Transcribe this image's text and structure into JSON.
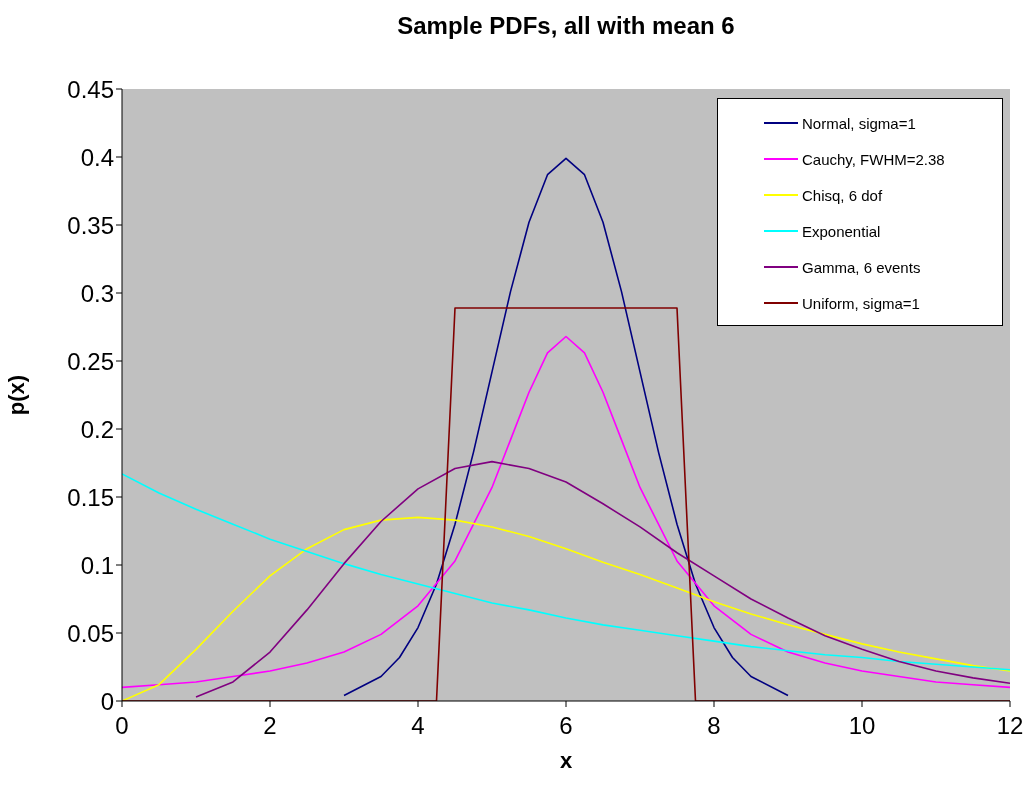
{
  "chart_data": {
    "type": "line",
    "title": "Sample PDFs, all with mean 6",
    "xlabel": "x",
    "ylabel": "p(x)",
    "xlim": [
      0,
      12
    ],
    "xticks": [
      0,
      2,
      4,
      6,
      8,
      10,
      12
    ],
    "ylim": [
      0,
      0.45
    ],
    "yticks": [
      0,
      0.05,
      0.1,
      0.15,
      0.2,
      0.25,
      0.3,
      0.35,
      0.4,
      0.45
    ],
    "grid": false,
    "legend": "top right",
    "marker": "none",
    "line_style": "solid",
    "series": [
      {
        "name": "Normal, sigma=1",
        "color": "#000080",
        "x": [
          3,
          3.5,
          3.75,
          4,
          4.25,
          4.5,
          4.75,
          5,
          5.25,
          5.5,
          5.75,
          6,
          6.25,
          6.5,
          6.75,
          7,
          7.25,
          7.5,
          7.75,
          8,
          8.25,
          8.5,
          9
        ],
        "values": [
          0.004,
          0.018,
          0.032,
          0.054,
          0.086,
          0.13,
          0.183,
          0.242,
          0.301,
          0.352,
          0.387,
          0.399,
          0.387,
          0.352,
          0.301,
          0.242,
          0.183,
          0.13,
          0.086,
          0.054,
          0.032,
          0.018,
          0.004
        ]
      },
      {
        "name": "Cauchy, FWHM=2.38",
        "color": "#ff00ff",
        "x": [
          0,
          0.5,
          1,
          1.5,
          2,
          2.5,
          3,
          3.5,
          4,
          4.5,
          5,
          5.25,
          5.5,
          5.75,
          6,
          6.25,
          6.5,
          6.75,
          7,
          7.5,
          8,
          8.5,
          9,
          9.5,
          10,
          10.5,
          11,
          11.5,
          12
        ],
        "values": [
          0.01,
          0.012,
          0.014,
          0.018,
          0.022,
          0.028,
          0.036,
          0.049,
          0.07,
          0.103,
          0.157,
          0.192,
          0.227,
          0.256,
          0.268,
          0.256,
          0.227,
          0.192,
          0.157,
          0.103,
          0.07,
          0.049,
          0.036,
          0.028,
          0.022,
          0.018,
          0.014,
          0.012,
          0.01
        ]
      },
      {
        "name": "Chisq, 6 dof",
        "color": "#ffff00",
        "x": [
          0,
          0.5,
          1,
          1.5,
          2,
          2.5,
          3,
          3.5,
          4,
          4.5,
          5,
          5.5,
          6,
          6.5,
          7,
          7.5,
          8,
          8.5,
          9,
          9.5,
          10,
          10.5,
          11,
          11.5,
          12
        ],
        "values": [
          0,
          0.012,
          0.038,
          0.066,
          0.092,
          0.112,
          0.126,
          0.133,
          0.135,
          0.133,
          0.128,
          0.121,
          0.112,
          0.102,
          0.093,
          0.083,
          0.073,
          0.064,
          0.056,
          0.049,
          0.042,
          0.036,
          0.031,
          0.026,
          0.022
        ]
      },
      {
        "name": "Exponential",
        "color": "#00ffff",
        "x": [
          0,
          0.5,
          1,
          1.5,
          2,
          2.5,
          3,
          3.5,
          4,
          4.5,
          5,
          5.5,
          6,
          6.5,
          7,
          7.5,
          8,
          8.5,
          9,
          9.5,
          10,
          10.5,
          11,
          11.5,
          12
        ],
        "values": [
          0.167,
          0.153,
          0.141,
          0.13,
          0.119,
          0.11,
          0.101,
          0.093,
          0.086,
          0.079,
          0.072,
          0.067,
          0.061,
          0.056,
          0.052,
          0.048,
          0.044,
          0.04,
          0.037,
          0.034,
          0.032,
          0.029,
          0.027,
          0.025,
          0.023
        ]
      },
      {
        "name": "Gamma, 6 events",
        "color": "#800080",
        "x": [
          1,
          1.5,
          2,
          2.5,
          3,
          3.5,
          4,
          4.5,
          5,
          5.5,
          6,
          6.5,
          7,
          7.5,
          8,
          8.5,
          9,
          9.5,
          10,
          10.5,
          11,
          11.5,
          12
        ],
        "values": [
          0.003,
          0.014,
          0.036,
          0.067,
          0.101,
          0.132,
          0.156,
          0.171,
          0.176,
          0.171,
          0.161,
          0.145,
          0.128,
          0.109,
          0.092,
          0.075,
          0.061,
          0.048,
          0.038,
          0.029,
          0.022,
          0.017,
          0.013
        ]
      },
      {
        "name": "Uniform, sigma=1",
        "color": "#800000",
        "x": [
          0,
          4.25,
          4.5,
          7.5,
          7.75,
          12
        ],
        "values": [
          0,
          0,
          0.289,
          0.289,
          0,
          0
        ]
      }
    ]
  }
}
